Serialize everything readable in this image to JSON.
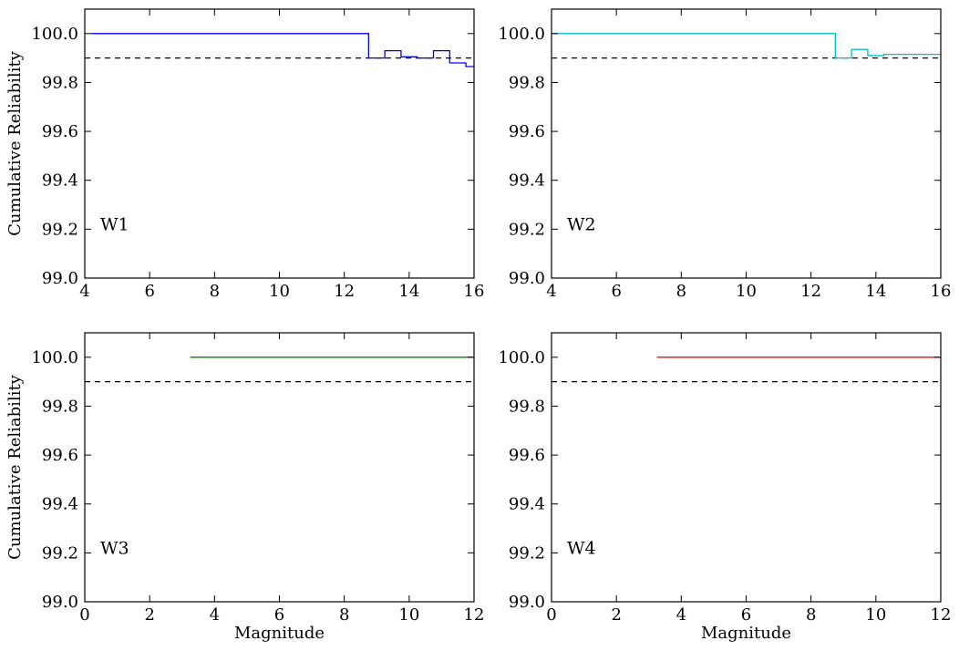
{
  "chart_data": [
    {
      "type": "line",
      "panel_label": "W1",
      "ylabel": "Cumulative Reliability",
      "xlabel": "",
      "xlim": [
        4,
        16
      ],
      "ylim": [
        99.0,
        100.1
      ],
      "xticks": [
        4,
        6,
        8,
        10,
        12,
        14,
        16
      ],
      "yticks": [
        "99.0",
        "99.2",
        "99.4",
        "99.6",
        "99.8",
        "100.0"
      ],
      "threshold": 99.9,
      "series": [
        {
          "color": "#0000ff",
          "step": true,
          "x": [
            4.2,
            12.75,
            12.75,
            13.25,
            13.25,
            13.75,
            13.75,
            14.25,
            14.25,
            14.75,
            14.75,
            15.25,
            15.25,
            15.75,
            15.75,
            16.0
          ],
          "y": [
            100.0,
            100.0,
            99.9,
            99.9,
            99.93,
            99.93,
            99.905,
            99.905,
            99.9,
            99.9,
            99.93,
            99.93,
            99.88,
            99.88,
            99.865,
            99.865
          ]
        }
      ]
    },
    {
      "type": "line",
      "panel_label": "W2",
      "ylabel": "",
      "xlabel": "",
      "xlim": [
        4,
        16
      ],
      "ylim": [
        99.0,
        100.1
      ],
      "xticks": [
        4,
        6,
        8,
        10,
        12,
        14,
        16
      ],
      "yticks": [
        "99.0",
        "99.2",
        "99.4",
        "99.6",
        "99.8",
        "100.0"
      ],
      "threshold": 99.9,
      "series": [
        {
          "color": "#00bfbf",
          "step": true,
          "x": [
            4.0,
            12.75,
            12.75,
            13.25,
            13.25,
            13.75,
            13.75,
            14.25,
            14.25,
            16.0
          ],
          "y": [
            100.0,
            100.0,
            99.9,
            99.9,
            99.935,
            99.935,
            99.91,
            99.91,
            99.915,
            99.915
          ]
        }
      ]
    },
    {
      "type": "line",
      "panel_label": "W3",
      "ylabel": "Cumulative Reliability",
      "xlabel": "Magnitude",
      "xlim": [
        0,
        12
      ],
      "ylim": [
        99.0,
        100.1
      ],
      "xticks": [
        0,
        2,
        4,
        6,
        8,
        10,
        12
      ],
      "yticks": [
        "99.0",
        "99.2",
        "99.4",
        "99.6",
        "99.8",
        "100.0"
      ],
      "threshold": 99.9,
      "series": [
        {
          "color": "#008000",
          "step": true,
          "x": [
            3.25,
            12.0
          ],
          "y": [
            100.0,
            100.0
          ]
        }
      ]
    },
    {
      "type": "line",
      "panel_label": "W4",
      "ylabel": "",
      "xlabel": "Magnitude",
      "xlim": [
        0,
        12
      ],
      "ylim": [
        99.0,
        100.1
      ],
      "xticks": [
        0,
        2,
        4,
        6,
        8,
        10,
        12
      ],
      "yticks": [
        "99.0",
        "99.2",
        "99.4",
        "99.6",
        "99.8",
        "100.0"
      ],
      "threshold": 99.9,
      "series": [
        {
          "color": "#ff0000",
          "step": true,
          "x": [
            3.25,
            12.0
          ],
          "y": [
            100.0,
            100.0
          ]
        }
      ]
    }
  ]
}
